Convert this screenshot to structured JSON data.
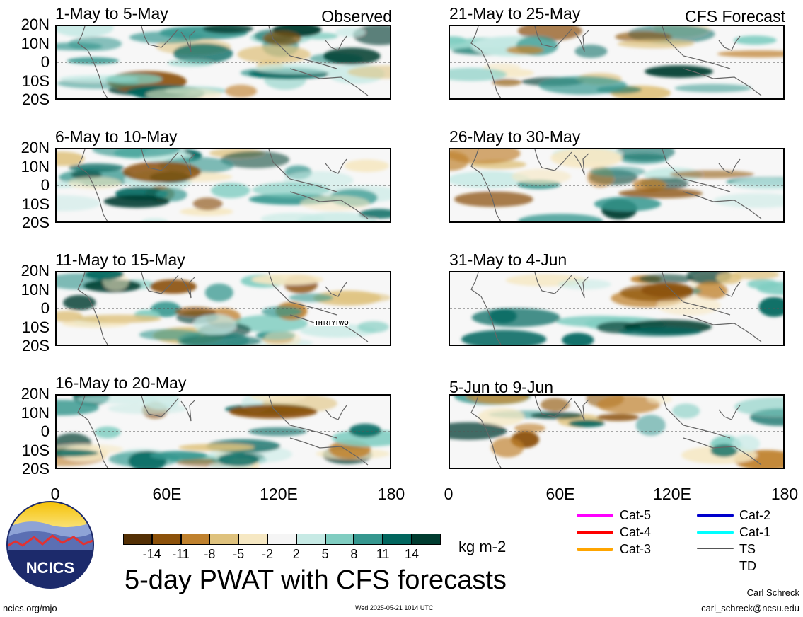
{
  "header_tags": {
    "left": "Observed",
    "right": "CFS Forecast"
  },
  "panels": [
    {
      "title": "1-May to 5-May",
      "side": "left"
    },
    {
      "title": "6-May to 10-May",
      "side": "left"
    },
    {
      "title": "11-May to 15-May",
      "side": "left"
    },
    {
      "title": "16-May to 20-May",
      "side": "left"
    },
    {
      "title": "21-May to 25-May",
      "side": "right"
    },
    {
      "title": "26-May to 30-May",
      "side": "right"
    },
    {
      "title": "31-May to 4-Jun",
      "side": "right"
    },
    {
      "title": "5-Jun to 9-Jun",
      "side": "right"
    }
  ],
  "lat_labels": [
    "20N",
    "10N",
    "0",
    "10S",
    "20S"
  ],
  "lon_labels": [
    "0",
    "60E",
    "120E",
    "180"
  ],
  "storm_label": "THIRTYTWO",
  "colorbar": {
    "colors": [
      "#543005",
      "#8c510a",
      "#bf812d",
      "#dfc27d",
      "#f6e8c3",
      "#f5f5f5",
      "#c7eae5",
      "#80cdc1",
      "#35978f",
      "#01665e",
      "#003c30"
    ],
    "ticks": [
      "-14",
      "-11",
      "-8",
      "-5",
      "-2",
      "2",
      "5",
      "8",
      "11",
      "14"
    ],
    "units": "kg m-2"
  },
  "main_title": "5-day PWAT with CFS forecasts",
  "legend": [
    {
      "label": "Cat-5",
      "color": "#ff00ff"
    },
    {
      "label": "Cat-4",
      "color": "#ff0000"
    },
    {
      "label": "Cat-3",
      "color": "#ffa500"
    },
    {
      "label": "Cat-2",
      "color": "#0000cc"
    },
    {
      "label": "Cat-1",
      "color": "#00ffff"
    },
    {
      "label": "TS",
      "color": "#555555"
    },
    {
      "label": "TD",
      "color": "#aaaaaa"
    }
  ],
  "footer": {
    "site": "ncics.org/mjo",
    "timestamp": "Wed 2025-05-21 1014 UTC",
    "author": "Carl Schreck",
    "email": "carl_schreck@ncsu.edu",
    "logo_text": "NCICS"
  }
}
